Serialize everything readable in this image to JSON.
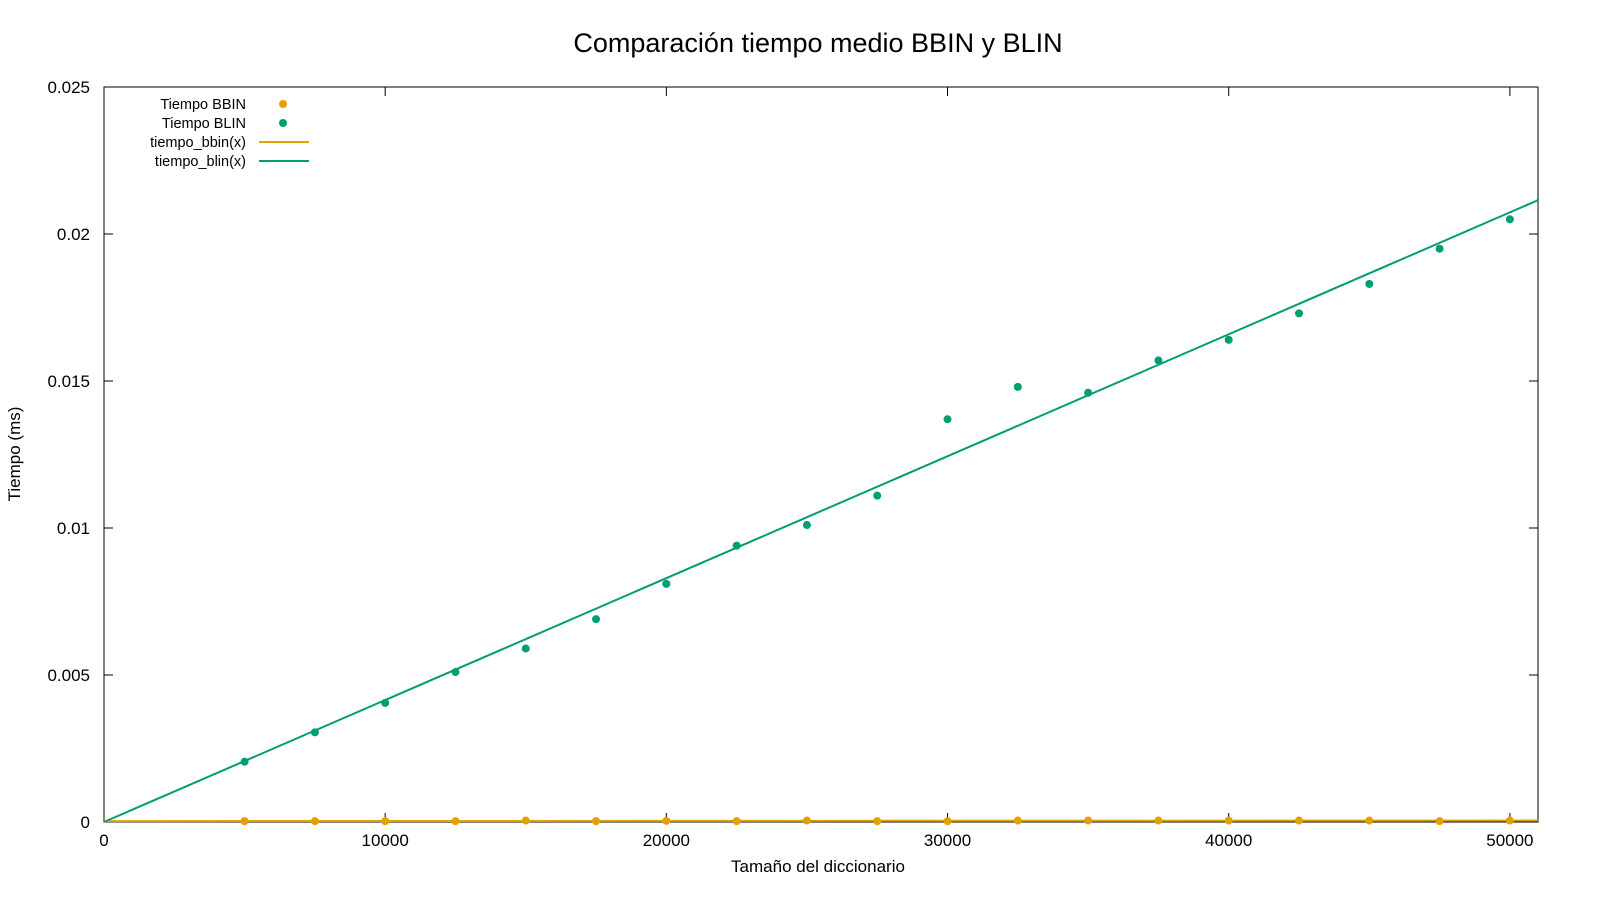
{
  "chart_data": {
    "type": "scatter",
    "title": "Comparación tiempo medio BBIN y BLIN",
    "xlabel": "Tamaño del diccionario",
    "ylabel": "Tiempo (ms)",
    "xlim": [
      0,
      51000
    ],
    "ylim": [
      0,
      0.025
    ],
    "x_ticks": [
      0,
      10000,
      20000,
      30000,
      40000,
      50000
    ],
    "x_tick_labels": [
      "0",
      "10000",
      "20000",
      "30000",
      "40000",
      "50000"
    ],
    "y_ticks": [
      0,
      0.005,
      0.01,
      0.015,
      0.02,
      0.025
    ],
    "y_tick_labels": [
      "0",
      "0.005",
      "0.01",
      "0.015",
      "0.02",
      "0.025"
    ],
    "grid": false,
    "legend_position": "top-left",
    "x": [
      5000,
      7500,
      10000,
      12500,
      15000,
      17500,
      20000,
      22500,
      25000,
      27500,
      30000,
      32500,
      35000,
      37500,
      40000,
      42500,
      45000,
      47500,
      50000
    ],
    "series": [
      {
        "name": "Tiempo BBIN",
        "kind": "points",
        "color": "#e69f00",
        "values": [
          3e-05,
          3e-05,
          3e-05,
          3e-05,
          5e-05,
          3e-05,
          4e-05,
          3e-05,
          5e-05,
          3e-05,
          3e-05,
          5e-05,
          5e-05,
          5e-05,
          5e-05,
          5e-05,
          5e-05,
          3e-05,
          5e-05
        ]
      },
      {
        "name": "Tiempo BLIN",
        "kind": "points",
        "color": "#009e73",
        "values": [
          0.00205,
          0.00305,
          0.00405,
          0.0051,
          0.0059,
          0.0069,
          0.0081,
          0.0094,
          0.0101,
          0.0111,
          0.0137,
          0.0148,
          0.0146,
          0.0157,
          0.0164,
          0.0173,
          0.0183,
          0.0195,
          0.0205
        ]
      },
      {
        "name": "tiempo_bbin(x)",
        "kind": "line",
        "color": "#e69f00",
        "x": [
          0,
          51000
        ],
        "values": [
          3e-05,
          5e-05
        ]
      },
      {
        "name": "tiempo_blin(x)",
        "kind": "line",
        "color": "#009e73",
        "x": [
          0,
          51000
        ],
        "values": [
          0.0,
          0.02115
        ]
      }
    ]
  }
}
